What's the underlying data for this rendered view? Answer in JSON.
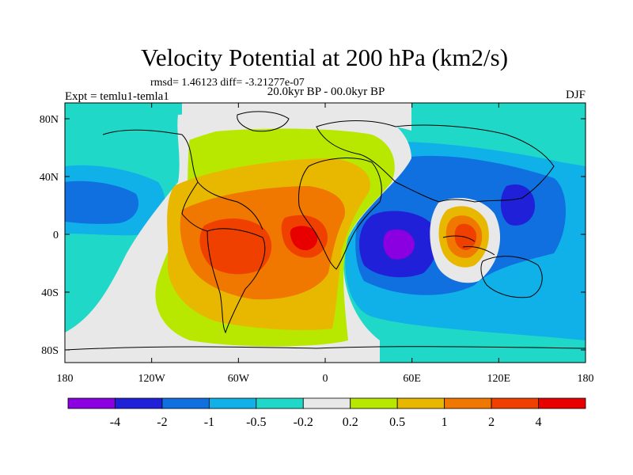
{
  "title": "Velocity Potential at 200 hPa (km2/s)",
  "stats_line": "rmsd= 1.46123 diff= -3.21277e-07",
  "left_label": "Expt = temlu1-temla1",
  "center_label": "20.0kyr BP - 00.0kyr BP",
  "right_label": "DJF",
  "x_ticks": [
    "180",
    "120W",
    "60W",
    "0",
    "60E",
    "120E",
    "180"
  ],
  "y_ticks": [
    "80N",
    "40N",
    "0",
    "40S",
    "80S"
  ],
  "colorbar": {
    "colors": [
      "#8a00e0",
      "#2020d8",
      "#1070e0",
      "#10b0e8",
      "#20d8c8",
      "#e8e8e8",
      "#b8e800",
      "#e8b800",
      "#f07800",
      "#f04000",
      "#e80000"
    ],
    "labels": [
      "-4",
      "-2",
      "-1",
      "-0.5",
      "-0.2",
      "0.2",
      "0.5",
      "1",
      "2",
      "4"
    ]
  },
  "palette": {
    "n1": "#20d8c8",
    "n2": "#10b0e8",
    "n3": "#1070e0",
    "n4": "#2020d8",
    "n5": "#8a00e0",
    "zero": "#e8e8e8",
    "p1": "#b8e800",
    "p2": "#e8b800",
    "p3": "#f07800",
    "p4": "#f04000",
    "p5": "#e80000",
    "coast": "#000000"
  }
}
